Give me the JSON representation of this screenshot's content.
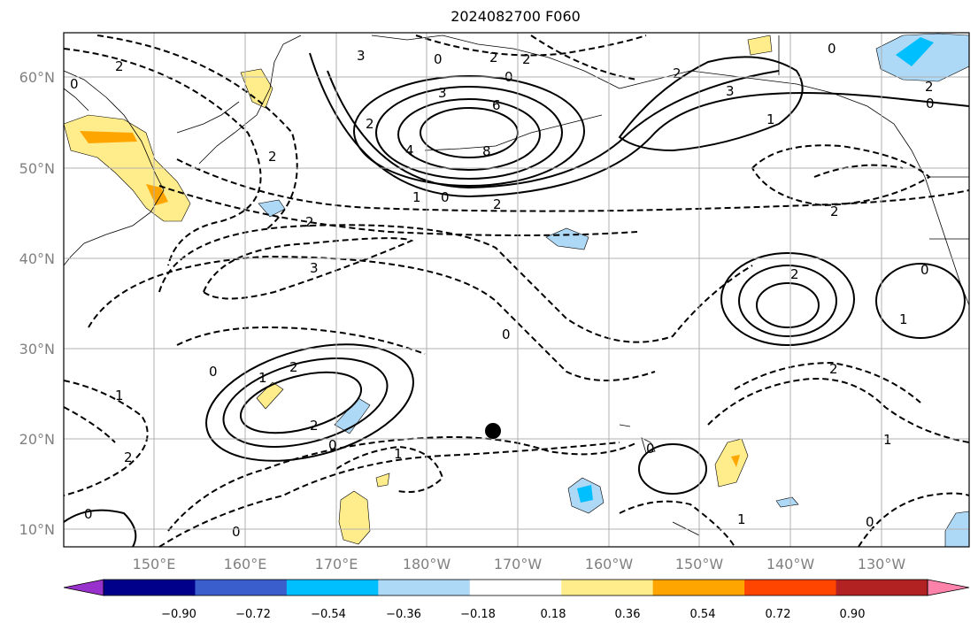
{
  "title": "2024082700 F060",
  "lon_ticks": [
    "150°E",
    "160°E",
    "170°E",
    "180°W",
    "170°W",
    "160°W",
    "150°W",
    "140°W",
    "130°W"
  ],
  "lat_ticks": [
    "60°N",
    "50°N",
    "40°N",
    "30°N",
    "20°N",
    "10°N"
  ],
  "colorbar": {
    "labels": [
      "−0.90",
      "−0.72",
      "−0.54",
      "−0.36",
      "−0.18",
      "0.18",
      "0.36",
      "0.54",
      "0.72",
      "0.90"
    ],
    "colors": [
      "#9932cc",
      "#00008b",
      "#3a5fcd",
      "#00bfff",
      "#add8f6",
      "#ffffff",
      "#ffec8b",
      "#ffa500",
      "#ff4500",
      "#b22222",
      "#ff82ab"
    ]
  },
  "contour_labels": [
    "3",
    "2",
    "2",
    "2",
    "0",
    "0",
    "3",
    "6",
    "8",
    "4",
    "2",
    "1",
    "0",
    "2",
    "0",
    "3",
    "2",
    "0",
    "2",
    "2",
    "3",
    "0",
    "2",
    "2",
    "1",
    "0",
    "2",
    "1",
    "0",
    "2",
    "2",
    "0",
    "1",
    "2",
    "1",
    "0",
    "0",
    "1",
    "0",
    "2",
    "0",
    "0",
    "1",
    "1"
  ],
  "marker": "storm-center"
}
